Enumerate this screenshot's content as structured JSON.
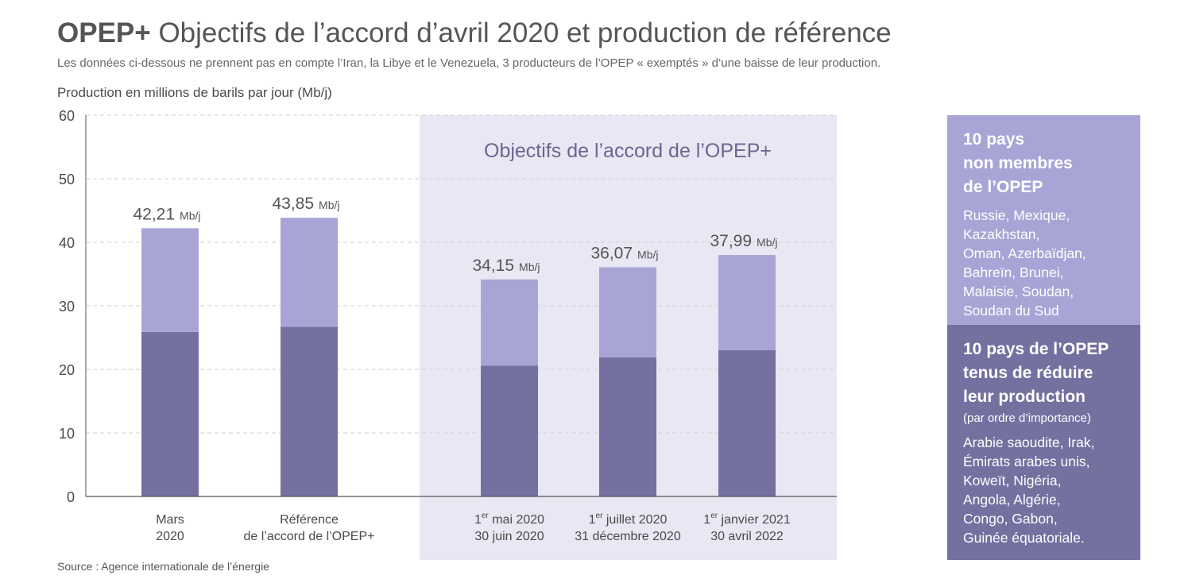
{
  "header": {
    "title_bold": "OPEP+",
    "title_rest": "Objectifs de l’accord d’avril 2020 et production de référence",
    "subtitle": "Les données ci-dessous ne prennent pas en compte l’Iran, la Libye et le Venezuela, 3 producteurs de l’OPEP « exemptés » d’une baisse de leur production.",
    "ylabel": "Production en millions de barils par jour (Mb/j)"
  },
  "footer": {
    "source": "Source : Agence internationale de l’énergie"
  },
  "panel": {
    "label": "Objectifs de l’accord de l’OPEP+"
  },
  "legend": {
    "non_opec": {
      "title": "10 pays\nnon membres\nde l’OPEP",
      "countries": "Russie, Mexique,\nKazakhstan,\nOman, Azerbaïdjan,\nBahreïn, Brunei,\nMalaisie, Soudan,\nSoudan du Sud"
    },
    "opec": {
      "title": "10 pays de l’OPEP\ntenus de réduire\nleur production",
      "note": "(par ordre d’importance)",
      "countries": "Arabie saoudite, Irak,\nÉmirats arabes unis,\nKoweït, Nigéria,\nAngola, Algérie,\nCongo, Gabon,\nGuinée équatoriale."
    }
  },
  "colors": {
    "non_opec": "#a8a5d6",
    "opec": "#7470a0",
    "panel_bg": "#e8e7f3",
    "axis": "#555555",
    "grid": "#d2d2d2",
    "panel_title": "#6a6690"
  },
  "chart_data": {
    "type": "bar",
    "stacked": true,
    "unit_label": "Mb/j",
    "ylim": [
      0,
      60
    ],
    "yticks": [
      0,
      10,
      20,
      30,
      40,
      50,
      60
    ],
    "ylabel": "Production en millions de barils par jour (Mb/j)",
    "grid": true,
    "categories": [
      {
        "line1": "Mars",
        "sup": "",
        "line1_rest": "",
        "line2": "2020"
      },
      {
        "line1": "Référence",
        "sup": "",
        "line1_rest": "",
        "line2": "de l’accord de l’OPEP+"
      },
      {
        "line1": "1",
        "sup": "er",
        "line1_rest": " mai 2020",
        "line2": "30 juin 2020"
      },
      {
        "line1": "1",
        "sup": "er",
        "line1_rest": " juillet 2020",
        "line2": "31 décembre 2020"
      },
      {
        "line1": "1",
        "sup": "er",
        "line1_rest": " janvier 2021",
        "line2": "30 avril 2022"
      }
    ],
    "totals_labels": [
      "42,21",
      "43,85",
      "34,15",
      "36,07",
      "37,99"
    ],
    "series": [
      {
        "name": "10 pays de l’OPEP tenus de réduire leur production",
        "key": "opec",
        "values": [
          25.9,
          26.7,
          20.6,
          21.9,
          23.0
        ]
      },
      {
        "name": "10 pays non membres de l’OPEP",
        "key": "non_opec",
        "values": [
          16.31,
          17.15,
          13.55,
          14.17,
          14.99
        ]
      }
    ]
  }
}
